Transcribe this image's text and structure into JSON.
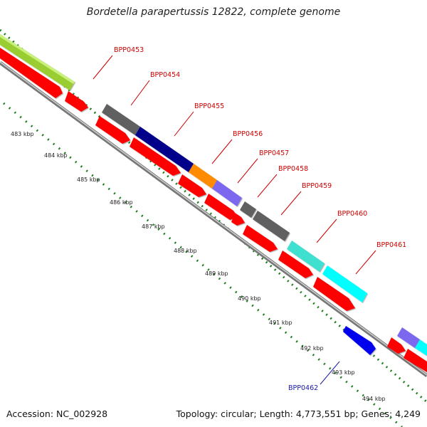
{
  "title": "Bordetella parapertussis 12822, complete genome",
  "footer": {
    "accession": "Accession: NC_002928",
    "summary": "Topology: circular; Length: 4,773,551 bp; Genes: 4,249"
  },
  "colors": {
    "forward_gene": "#ff0000",
    "backbone": "#999999",
    "tick": "#1f7f1f",
    "label_red": "#cc0000",
    "label_blue": "#1a1aaa"
  },
  "kbp_ticks": [
    "483 kbp",
    "484 kbp",
    "485 kbp",
    "486 kbp",
    "487 kbp",
    "488 kbp",
    "489 kbp",
    "490 kbp",
    "491 kbp",
    "492 kbp",
    "493 kbp",
    "494 kbp"
  ],
  "gene_labels": [
    {
      "name": "BPP0453",
      "color": "#cc0000"
    },
    {
      "name": "BPP0454",
      "color": "#cc0000"
    },
    {
      "name": "BPP0455",
      "color": "#cc0000"
    },
    {
      "name": "BPP0456",
      "color": "#cc0000"
    },
    {
      "name": "BPP0457",
      "color": "#cc0000"
    },
    {
      "name": "BPP0458",
      "color": "#cc0000"
    },
    {
      "name": "BPP0459",
      "color": "#cc0000"
    },
    {
      "name": "BPP0460",
      "color": "#cc0000"
    },
    {
      "name": "BPP0461",
      "color": "#cc0000"
    },
    {
      "name": "BPP0462",
      "color": "#1a1aaa"
    }
  ]
}
